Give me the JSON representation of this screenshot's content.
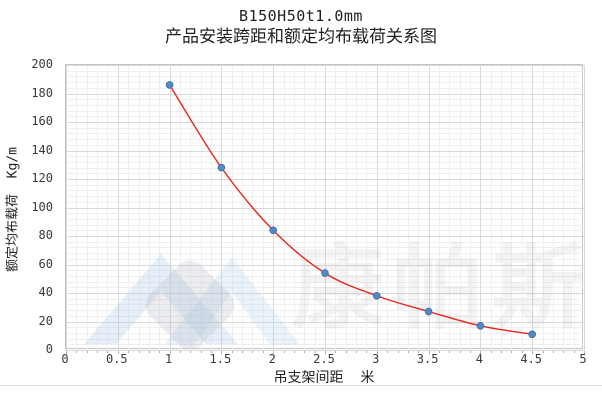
{
  "title": {
    "line1": "B150H50t1.0mm",
    "line2": "产品安装跨距和额定均布载荷关系图"
  },
  "chart_data": {
    "type": "scatter",
    "title": "B150H50t1.0mm 产品安装跨距和额定均布载荷关系图",
    "x": [
      1,
      1.5,
      2,
      2.5,
      3,
      3.5,
      4,
      4.5
    ],
    "values": [
      186,
      128,
      84,
      54,
      38,
      27,
      17,
      11
    ],
    "series": [
      {
        "name": "额定均布载荷",
        "style": "smooth-line-with-markers"
      }
    ],
    "xlabel": "吊支架间距  米",
    "ylabel": "额定均布载荷  Kg/m",
    "xlim": [
      0,
      5
    ],
    "ylim": [
      0,
      200
    ],
    "x_major_step": 0.5,
    "y_major_step": 20,
    "x_minor_step": 0.1,
    "y_minor_step": 4,
    "grid": true,
    "legend": "none",
    "x_ticks": [
      "0",
      "0.5",
      "1",
      "1.5",
      "2",
      "2.5",
      "3",
      "3.5",
      "4",
      "4.5",
      "5"
    ],
    "y_ticks": [
      "0",
      "20",
      "40",
      "60",
      "80",
      "100",
      "120",
      "140",
      "160",
      "180",
      "200"
    ]
  },
  "watermark": {
    "text": "康帕斯",
    "logo": "compass-chevron-logo"
  },
  "colors": {
    "line": "#e8251c",
    "marker_fill": "#5388c7",
    "marker_edge": "#3c6ea5",
    "grid_major": "#d9d9d9",
    "grid_minor": "#f0f0f0",
    "plot_border": "#c3c3c3",
    "tick_mark": "#adadad",
    "tick_text": "#3a3a3a",
    "title_text": "#1f1f1f"
  }
}
